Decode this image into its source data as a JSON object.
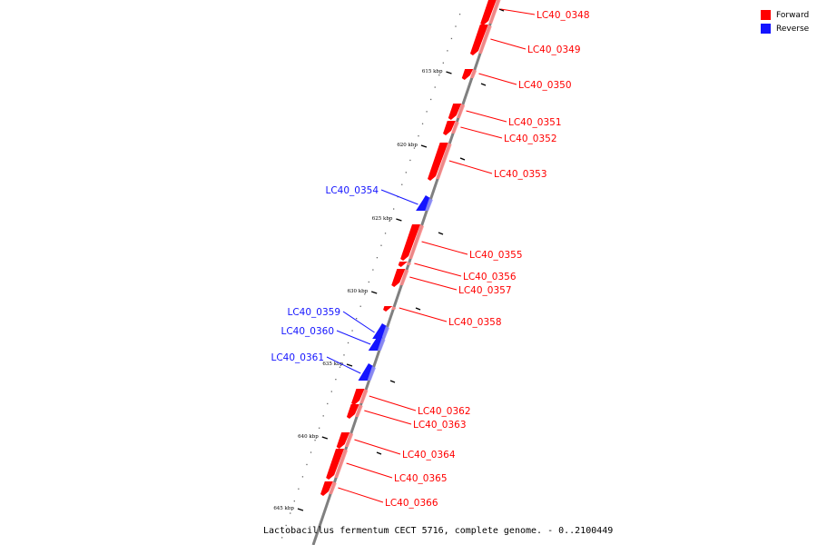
{
  "genome_title": "Lactobacillus fermentum CECT 5716, complete genome. - 0..2100449",
  "legend": [
    {
      "label": "Forward",
      "color": "#ff0000"
    },
    {
      "label": "Reverse",
      "color": "#1414ff"
    }
  ],
  "colors": {
    "forward": "#ff0000",
    "reverse": "#1414ff",
    "backbone": "#808080"
  },
  "ticks": [
    "615 kbp",
    "620 kbp",
    "625 kbp",
    "630 kbp",
    "635 kbp",
    "640 kbp",
    "645 kbp"
  ],
  "genes": [
    {
      "name": "LC40_0348",
      "strand": "forward"
    },
    {
      "name": "LC40_0349",
      "strand": "forward"
    },
    {
      "name": "LC40_0350",
      "strand": "forward"
    },
    {
      "name": "LC40_0351",
      "strand": "forward"
    },
    {
      "name": "LC40_0352",
      "strand": "forward"
    },
    {
      "name": "LC40_0353",
      "strand": "forward"
    },
    {
      "name": "LC40_0354",
      "strand": "reverse"
    },
    {
      "name": "LC40_0355",
      "strand": "forward"
    },
    {
      "name": "LC40_0356",
      "strand": "forward"
    },
    {
      "name": "LC40_0357",
      "strand": "forward"
    },
    {
      "name": "LC40_0358",
      "strand": "forward"
    },
    {
      "name": "LC40_0359",
      "strand": "reverse"
    },
    {
      "name": "LC40_0360",
      "strand": "reverse"
    },
    {
      "name": "LC40_0361",
      "strand": "reverse"
    },
    {
      "name": "LC40_0362",
      "strand": "forward"
    },
    {
      "name": "LC40_0363",
      "strand": "forward"
    },
    {
      "name": "LC40_0364",
      "strand": "forward"
    },
    {
      "name": "LC40_0365",
      "strand": "forward"
    },
    {
      "name": "LC40_0366",
      "strand": "forward"
    }
  ]
}
